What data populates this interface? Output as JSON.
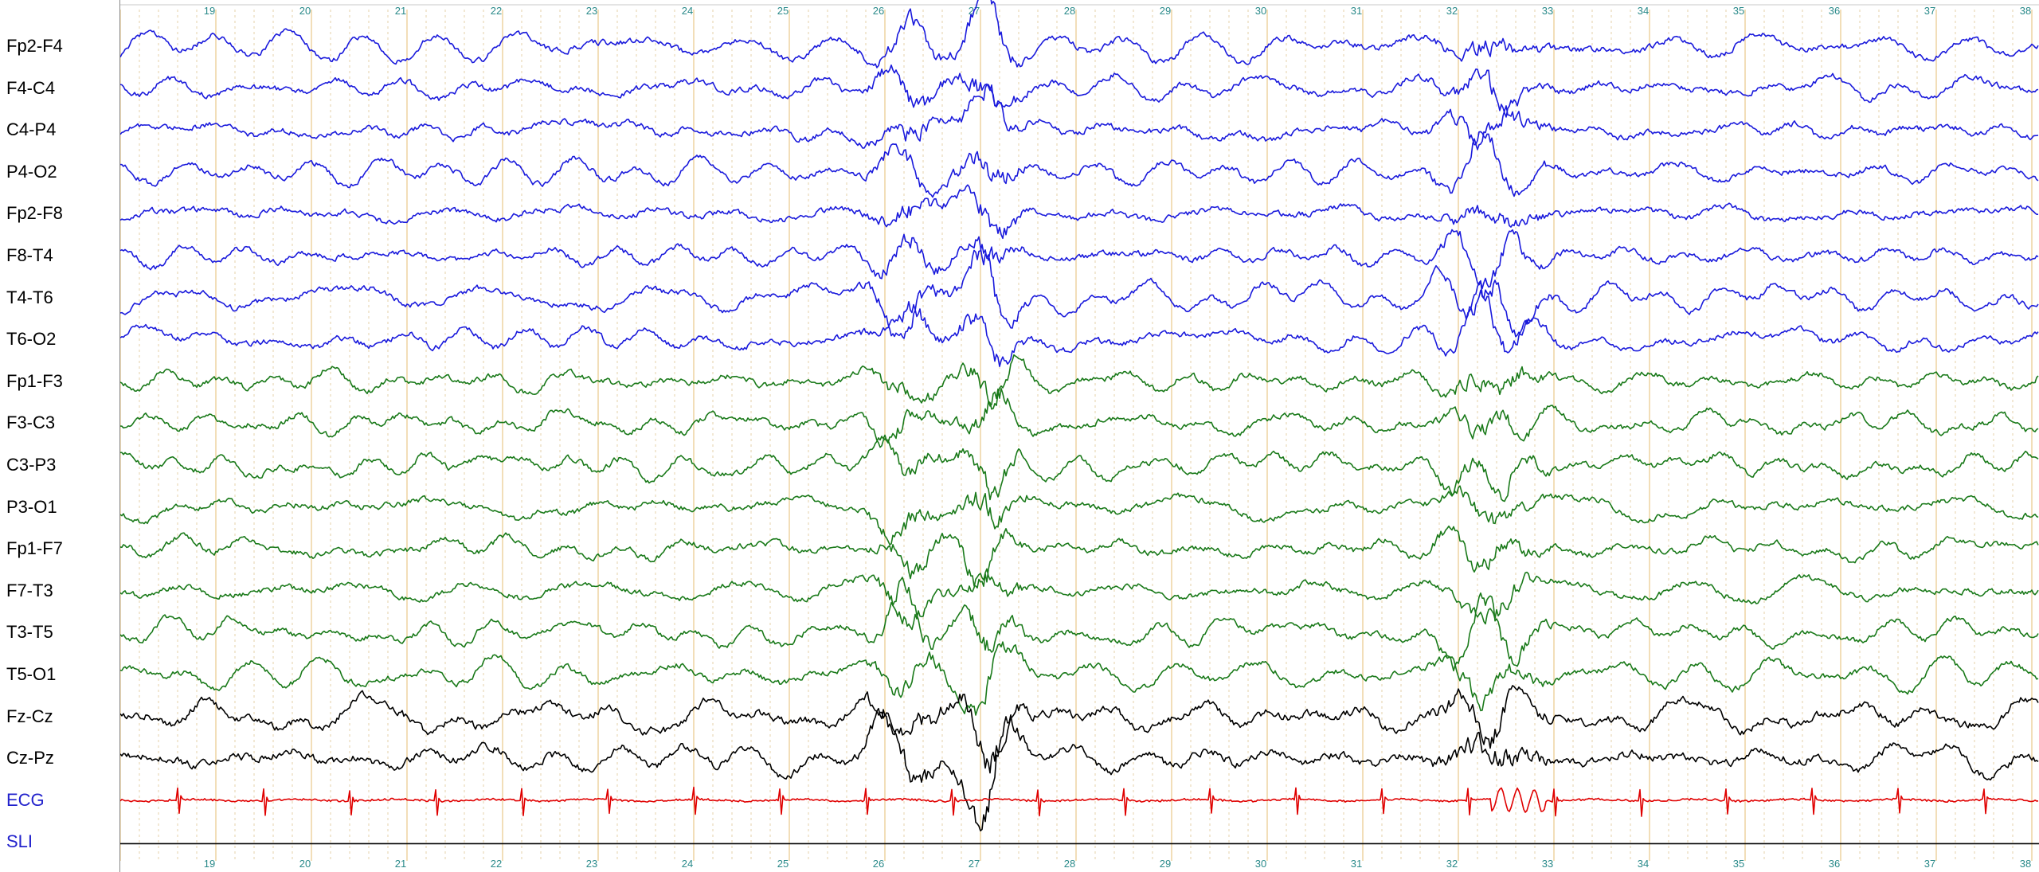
{
  "channels": [
    {
      "name": "Fp2-F4",
      "group": "right"
    },
    {
      "name": "F4-C4",
      "group": "right"
    },
    {
      "name": "C4-P4",
      "group": "right"
    },
    {
      "name": "P4-O2",
      "group": "right"
    },
    {
      "name": "Fp2-F8",
      "group": "right"
    },
    {
      "name": "F8-T4",
      "group": "right"
    },
    {
      "name": "T4-T6",
      "group": "right"
    },
    {
      "name": "T6-O2",
      "group": "right"
    },
    {
      "name": "Fp1-F3",
      "group": "left"
    },
    {
      "name": "F3-C3",
      "group": "left"
    },
    {
      "name": "C3-P3",
      "group": "left"
    },
    {
      "name": "P3-O1",
      "group": "left"
    },
    {
      "name": "Fp1-F7",
      "group": "left"
    },
    {
      "name": "F7-T3",
      "group": "left"
    },
    {
      "name": "T3-T5",
      "group": "left"
    },
    {
      "name": "T5-O1",
      "group": "left"
    },
    {
      "name": "Fz-Cz",
      "group": "midline"
    },
    {
      "name": "Cz-Pz",
      "group": "midline"
    },
    {
      "name": "ECG",
      "group": "ecg"
    },
    {
      "name": "SLI",
      "group": "sli"
    }
  ],
  "time_axis": {
    "seconds": [
      "19",
      "20",
      "21",
      "22",
      "23",
      "24",
      "25",
      "26",
      "27",
      "28",
      "29",
      "30",
      "31",
      "32",
      "33",
      "34",
      "35",
      "36",
      "37",
      "38"
    ]
  },
  "colors": {
    "right": "#1a1adc",
    "left": "#1a7a1a",
    "midline": "#000000",
    "ecg": "#e00000",
    "sli": "#000000",
    "label_default": "#000000",
    "label_ecg": "#2222cc",
    "label_sli": "#2222cc",
    "second_line": "#e8c98a",
    "subsecond_line": "#e6d2a8",
    "tick_text": "#2a8a8a"
  }
}
